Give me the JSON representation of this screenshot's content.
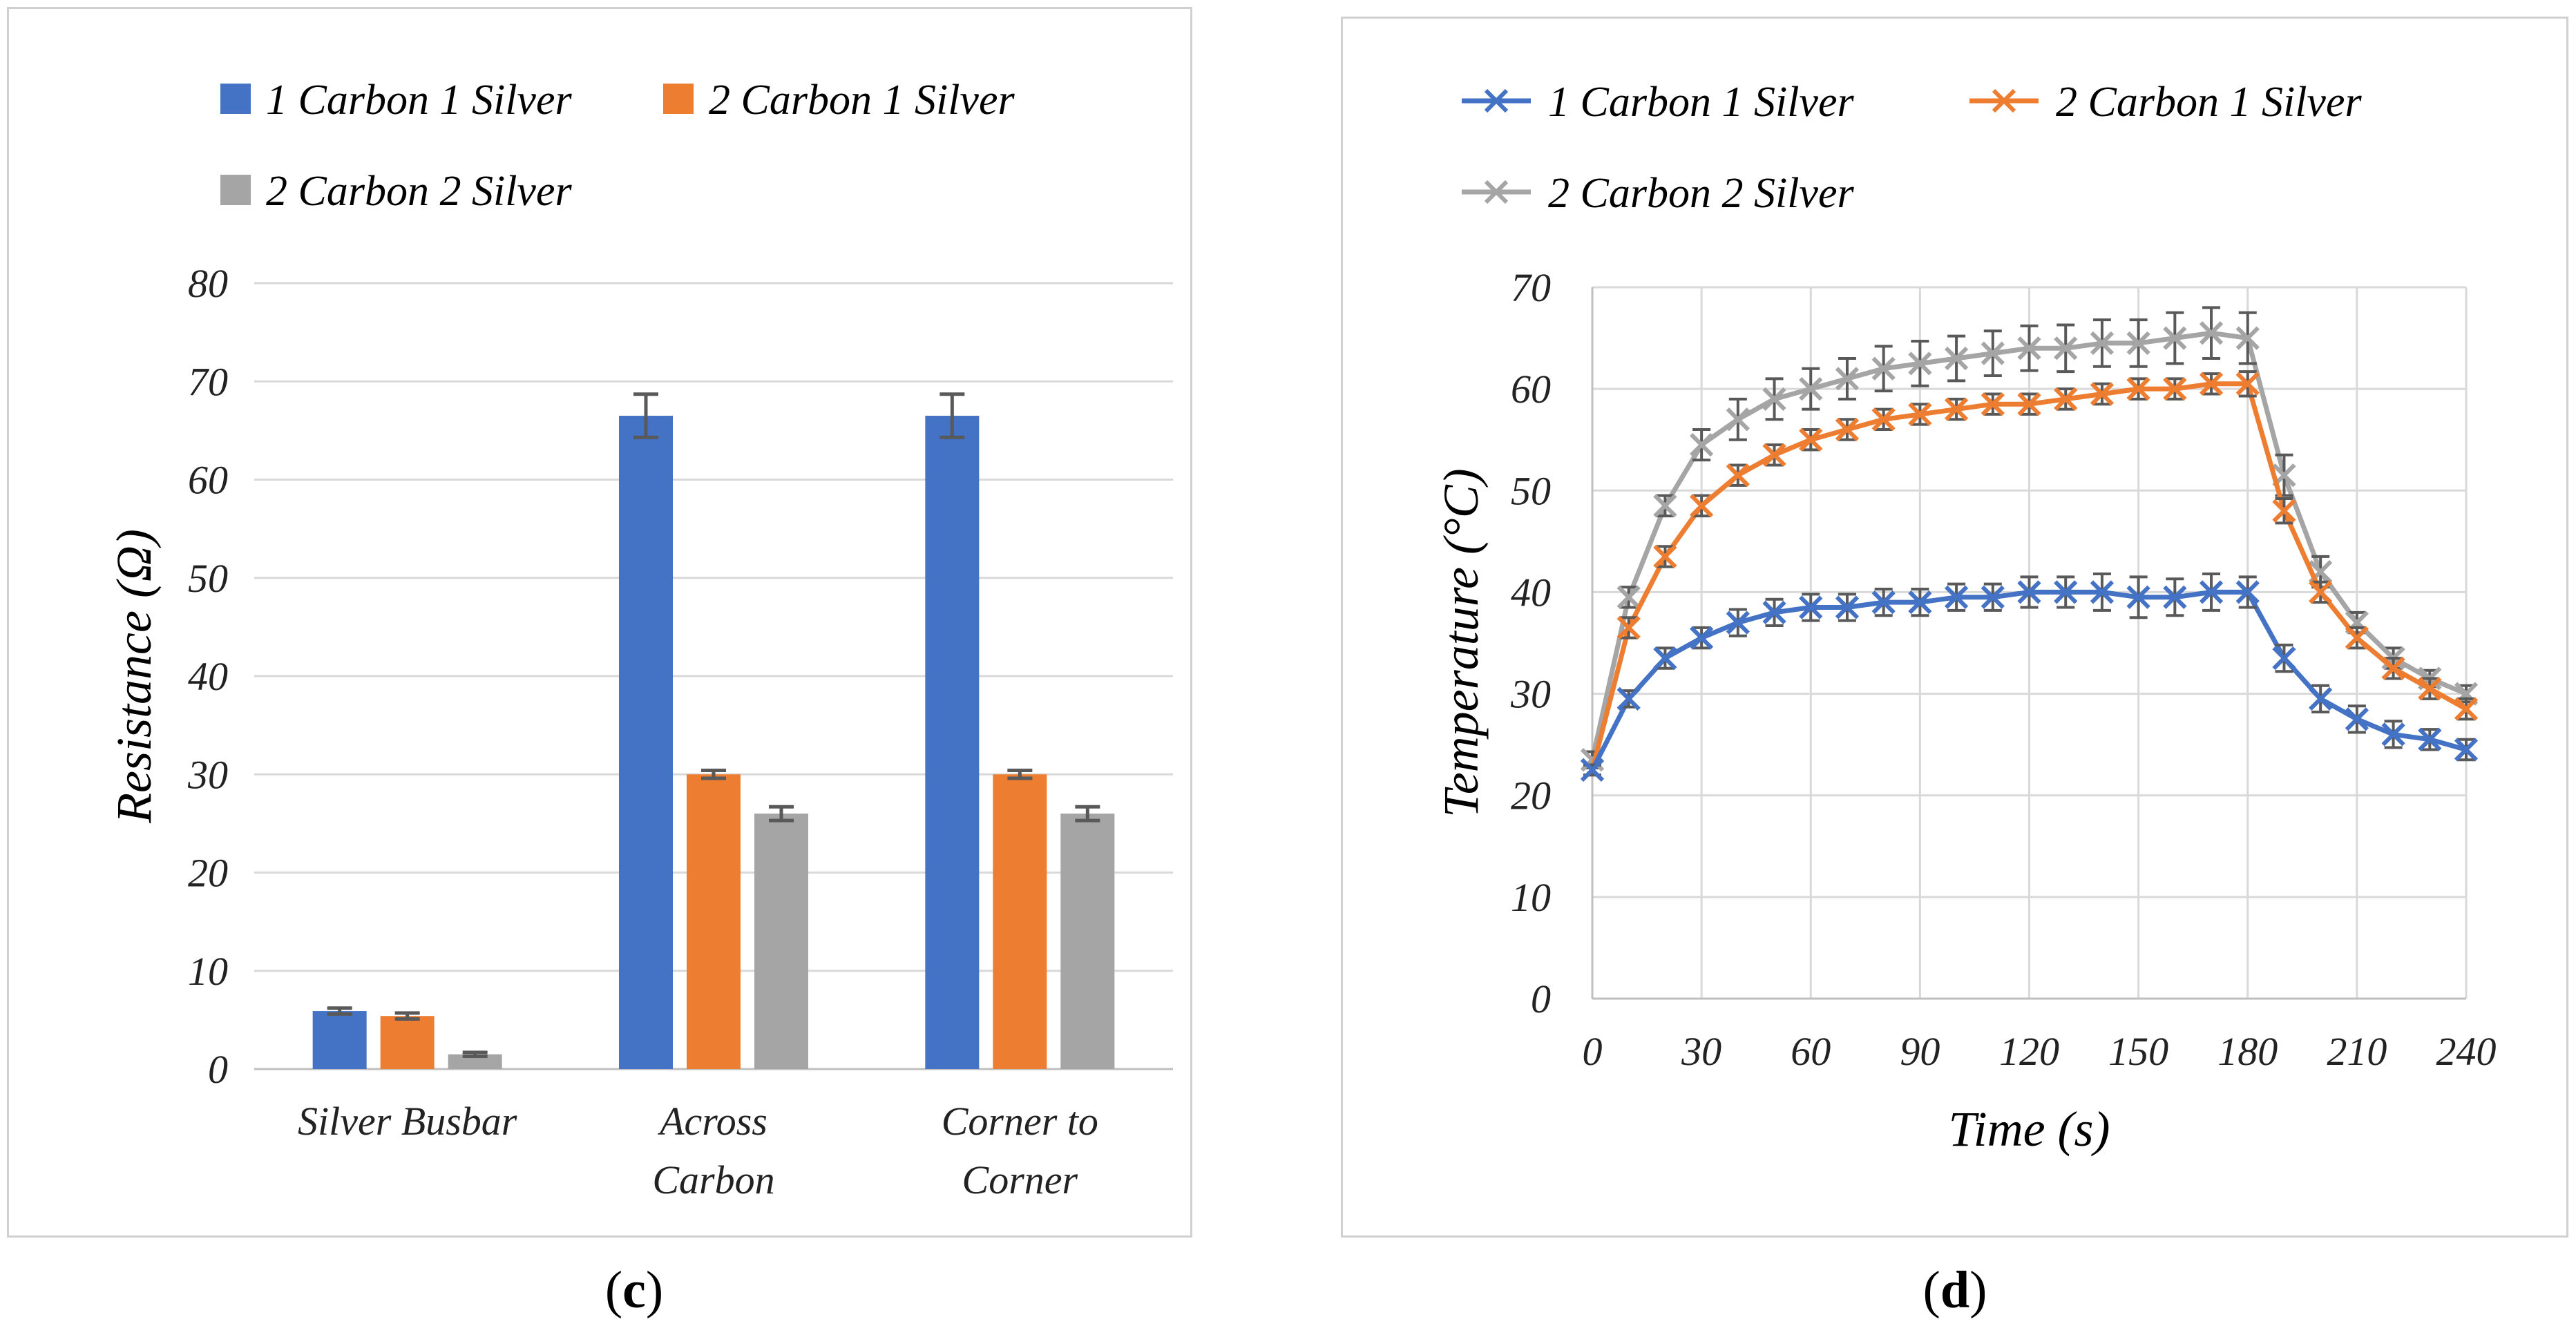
{
  "captions": {
    "left_open": "(",
    "left_letter": "c",
    "left_close": ")",
    "right_open": "(",
    "right_letter": "d",
    "right_close": ")"
  },
  "chart_data": [
    {
      "type": "bar",
      "title": "",
      "xlabel": "",
      "ylabel": "Resistance (Ω)",
      "ylim": [
        0,
        80
      ],
      "yticks": [
        0,
        10,
        20,
        30,
        40,
        50,
        60,
        70,
        80
      ],
      "grid": true,
      "legend_position": "top",
      "categories": [
        [
          "Silver Busbar"
        ],
        [
          "Across",
          "Carbon"
        ],
        [
          "Corner to",
          "Corner"
        ]
      ],
      "series": [
        {
          "name": "1 Carbon 1 Silver",
          "color": "#4472C4",
          "values": [
            5.9,
            66.5,
            66.5
          ],
          "errors": [
            0.3,
            2.2,
            2.2
          ]
        },
        {
          "name": "2 Carbon 1 Silver",
          "color": "#ED7D31",
          "values": [
            5.4,
            30.0,
            30.0
          ],
          "errors": [
            0.3,
            0.4,
            0.4
          ]
        },
        {
          "name": "2 Carbon 2 Silver",
          "color": "#A5A5A5",
          "values": [
            1.5,
            26.0,
            26.0
          ],
          "errors": [
            0.2,
            0.7,
            0.7
          ]
        }
      ]
    },
    {
      "type": "line",
      "title": "",
      "xlabel": "Time (s)",
      "ylabel": "Temperature (°C)",
      "xlim": [
        0,
        240
      ],
      "ylim": [
        0,
        70
      ],
      "xticks": [
        0,
        30,
        60,
        90,
        120,
        150,
        180,
        210,
        240
      ],
      "yticks": [
        0,
        10,
        20,
        30,
        40,
        50,
        60,
        70
      ],
      "grid": true,
      "legend_position": "top",
      "x": [
        0,
        10,
        20,
        30,
        40,
        50,
        60,
        70,
        80,
        90,
        100,
        110,
        120,
        130,
        140,
        150,
        160,
        170,
        180,
        190,
        200,
        210,
        220,
        230,
        240
      ],
      "series": [
        {
          "name": "1 Carbon 1 Silver",
          "color": "#4472C4",
          "marker": "x",
          "values": [
            22.5,
            29.5,
            33.5,
            35.5,
            37.0,
            38.0,
            38.5,
            38.5,
            39.0,
            39.0,
            39.5,
            39.5,
            40.0,
            40.0,
            40.0,
            39.5,
            39.5,
            40.0,
            40.0,
            33.5,
            29.5,
            27.5,
            26.0,
            25.5,
            24.5
          ],
          "errors": [
            0.5,
            0.8,
            1.0,
            1.0,
            1.3,
            1.3,
            1.3,
            1.3,
            1.3,
            1.3,
            1.3,
            1.3,
            1.5,
            1.5,
            1.8,
            2.0,
            1.8,
            1.8,
            1.5,
            1.3,
            1.3,
            1.3,
            1.3,
            1.0,
            1.0
          ]
        },
        {
          "name": "2 Carbon 1 Silver",
          "color": "#ED7D31",
          "marker": "x",
          "values": [
            22.5,
            36.5,
            43.5,
            48.5,
            51.5,
            53.5,
            55.0,
            56.0,
            57.0,
            57.5,
            58.0,
            58.5,
            58.5,
            59.0,
            59.5,
            60.0,
            60.0,
            60.5,
            60.5,
            48.0,
            40.0,
            35.5,
            32.5,
            30.5,
            28.5
          ],
          "errors": [
            0.5,
            1.0,
            1.0,
            1.0,
            1.0,
            1.0,
            1.0,
            1.0,
            1.0,
            1.0,
            1.0,
            1.0,
            1.0,
            1.0,
            1.0,
            1.0,
            1.0,
            1.0,
            1.2,
            1.2,
            1.0,
            1.0,
            1.0,
            1.0,
            1.0
          ]
        },
        {
          "name": "2 Carbon 2 Silver",
          "color": "#A5A5A5",
          "marker": "x",
          "values": [
            23.5,
            39.5,
            48.5,
            54.5,
            57.0,
            59.0,
            60.0,
            61.0,
            62.0,
            62.5,
            63.0,
            63.5,
            64.0,
            64.0,
            64.5,
            64.5,
            65.0,
            65.5,
            65.0,
            51.5,
            42.0,
            37.0,
            33.5,
            31.5,
            30.0
          ],
          "errors": [
            0.8,
            1.0,
            1.0,
            1.5,
            2.0,
            2.0,
            2.0,
            2.0,
            2.2,
            2.2,
            2.2,
            2.2,
            2.2,
            2.3,
            2.3,
            2.3,
            2.5,
            2.5,
            2.5,
            2.0,
            1.5,
            1.0,
            1.0,
            0.8,
            0.8
          ]
        }
      ]
    }
  ]
}
